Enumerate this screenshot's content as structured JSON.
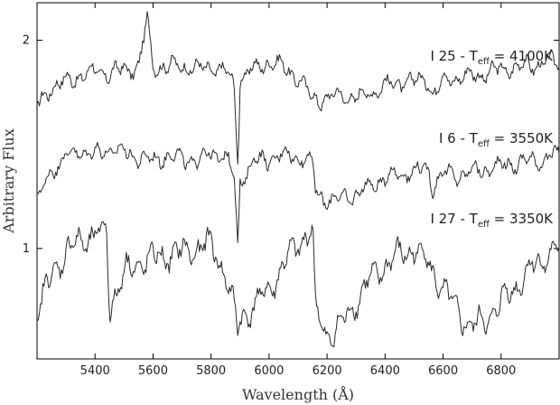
{
  "chart_data": {
    "type": "line",
    "xlabel": "Wavelength (Å)",
    "ylabel": "Arbitrary Flux",
    "xlim": [
      5200,
      7000
    ],
    "ylim": [
      0.47,
      2.18
    ],
    "xticks": [
      5400,
      5600,
      5800,
      6000,
      6200,
      6400,
      6600,
      6800
    ],
    "yticks": [
      1,
      2
    ],
    "grid": false,
    "series": [
      {
        "name": "I 25 - Teff = 4100K",
        "label_main": "I 25 - T",
        "label_sub": "eff",
        "label_tail": " = 4100K",
        "color": "#2a2a2a",
        "x": [
          5200,
          5250,
          5300,
          5350,
          5400,
          5450,
          5500,
          5550,
          5580,
          5600,
          5650,
          5700,
          5750,
          5800,
          5850,
          5880,
          5893,
          5900,
          5950,
          6000,
          6050,
          6100,
          6150,
          6200,
          6250,
          6300,
          6350,
          6400,
          6450,
          6500,
          6550,
          6563,
          6600,
          6650,
          6700,
          6750,
          6800,
          6850,
          6900,
          6950,
          7000
        ],
        "y": [
          1.68,
          1.78,
          1.8,
          1.83,
          1.85,
          1.84,
          1.86,
          1.87,
          2.1,
          1.88,
          1.87,
          1.88,
          1.86,
          1.87,
          1.85,
          1.78,
          1.4,
          1.82,
          1.86,
          1.9,
          1.87,
          1.82,
          1.72,
          1.72,
          1.74,
          1.72,
          1.75,
          1.78,
          1.8,
          1.8,
          1.82,
          1.73,
          1.81,
          1.82,
          1.83,
          1.84,
          1.86,
          1.87,
          1.88,
          1.89,
          1.9
        ]
      },
      {
        "name": "I 6 - Teff = 3550K",
        "label_main": "I 6 - T",
        "label_sub": "eff",
        "label_tail": " = 3550K",
        "color": "#2a2a2a",
        "x": [
          5200,
          5250,
          5300,
          5350,
          5400,
          5450,
          5500,
          5550,
          5600,
          5650,
          5700,
          5750,
          5800,
          5850,
          5880,
          5893,
          5900,
          5950,
          6000,
          6050,
          6100,
          6150,
          6160,
          6200,
          6250,
          6300,
          6350,
          6400,
          6450,
          6500,
          6550,
          6563,
          6600,
          6650,
          6700,
          6750,
          6800,
          6850,
          6900,
          6950,
          7000
        ],
        "y": [
          1.22,
          1.38,
          1.44,
          1.47,
          1.45,
          1.48,
          1.46,
          1.44,
          1.42,
          1.45,
          1.43,
          1.42,
          1.46,
          1.44,
          1.35,
          1.0,
          1.32,
          1.42,
          1.43,
          1.45,
          1.44,
          1.42,
          1.27,
          1.23,
          1.24,
          1.26,
          1.3,
          1.34,
          1.36,
          1.37,
          1.38,
          1.3,
          1.36,
          1.35,
          1.37,
          1.38,
          1.4,
          1.41,
          1.42,
          1.43,
          1.45
        ]
      },
      {
        "name": "I 27 - Teff = 3350K",
        "label_main": "I 27 - T",
        "label_sub": "eff",
        "label_tail": " = 3350K",
        "color": "#2a2a2a",
        "x": [
          5200,
          5250,
          5300,
          5350,
          5400,
          5440,
          5450,
          5500,
          5550,
          5600,
          5650,
          5700,
          5750,
          5800,
          5850,
          5880,
          5893,
          5900,
          5950,
          6000,
          6050,
          6100,
          6150,
          6160,
          6200,
          6250,
          6300,
          6350,
          6400,
          6450,
          6500,
          6550,
          6600,
          6650,
          6700,
          6750,
          6800,
          6850,
          6900,
          6950,
          7000
        ],
        "y": [
          0.67,
          0.88,
          0.98,
          1.04,
          1.06,
          1.08,
          0.72,
          0.88,
          0.93,
          0.95,
          0.97,
          0.98,
          1.0,
          1.02,
          0.88,
          0.7,
          0.6,
          0.66,
          0.73,
          0.8,
          0.92,
          1.02,
          1.1,
          0.7,
          0.58,
          0.63,
          0.75,
          0.85,
          0.92,
          0.97,
          1.0,
          0.93,
          0.8,
          0.7,
          0.62,
          0.66,
          0.74,
          0.82,
          0.9,
          0.96,
          1.0
        ]
      }
    ]
  }
}
